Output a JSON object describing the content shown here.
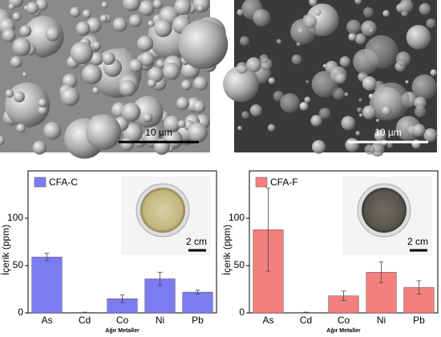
{
  "micrographs": [
    {
      "scale_bar": "10 µm"
    },
    {
      "scale_bar": "10 µm"
    }
  ],
  "chart_data": [
    {
      "type": "bar",
      "legend": "CFA-C",
      "color": "#7b7cf2",
      "ylabel": "İçerik (ppm)",
      "xlabel": "Ağır Metaller",
      "categories": [
        "As",
        "Cd",
        "Co",
        "Ni",
        "Pb"
      ],
      "values": [
        59,
        0.5,
        15,
        36,
        22
      ],
      "errors": [
        4,
        0.3,
        4,
        7,
        2
      ],
      "ylim": [
        0,
        150
      ],
      "yticks": [
        0,
        50,
        100
      ],
      "inset_scale": "2 cm",
      "legend_position": "upper left"
    },
    {
      "type": "bar",
      "legend": "CFA-F",
      "color": "#f47f7f",
      "ylabel": "İçerik (ppm)",
      "xlabel": "Ağır Metaller",
      "categories": [
        "As",
        "Cd",
        "Co",
        "Ni",
        "Pb"
      ],
      "values": [
        88,
        0.5,
        18,
        43,
        27
      ],
      "errors": [
        44,
        0.3,
        5,
        11,
        7
      ],
      "ylim": [
        0,
        150
      ],
      "yticks": [
        0,
        50,
        100
      ],
      "inset_scale": "2 cm",
      "legend_position": "upper left"
    }
  ]
}
